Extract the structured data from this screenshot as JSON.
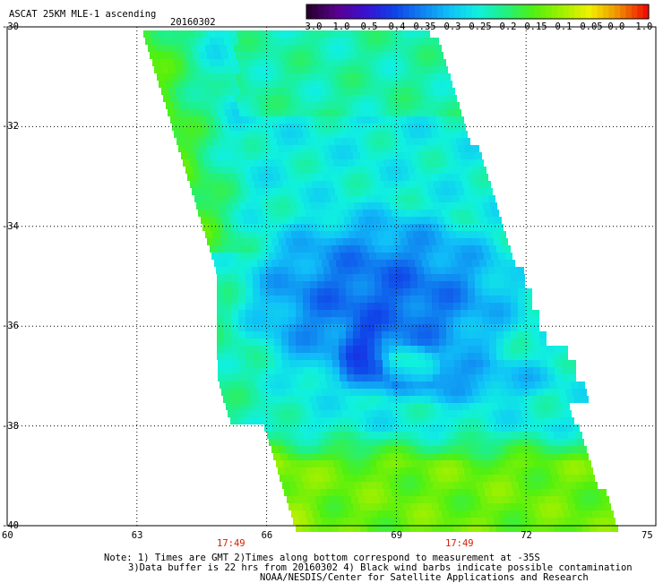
{
  "title": "ASCAT 25KM MLE-1 ascending",
  "date": "20160302",
  "colorbar": {
    "labels": [
      "-3.0",
      "-1.0",
      "-0.5",
      "-0.4",
      "-0.35",
      "-0.3",
      "-0.25",
      "-0.2",
      "-0.15",
      "-0.1",
      "-0.05",
      "0.0",
      "1.0"
    ],
    "colors": [
      "#2a0030",
      "#5a0090",
      "#3a10d0",
      "#1040e8",
      "#1080f0",
      "#10c0f8",
      "#10f0e0",
      "#20f080",
      "#50f010",
      "#a0f000",
      "#f0f000",
      "#f09000",
      "#f01000"
    ]
  },
  "axes": {
    "lat_labels": [
      "-30",
      "-32",
      "-34",
      "-36",
      "-38",
      "-40"
    ],
    "lon_labels": [
      "60",
      "63",
      "66",
      "69",
      "72",
      "75"
    ],
    "lat_values": [
      -30,
      -32,
      -34,
      -36,
      -38,
      -40
    ],
    "lon_values": [
      60,
      63,
      66,
      69,
      72,
      75
    ]
  },
  "times": [
    "17:49",
    "17:49"
  ],
  "notes": {
    "line1": "Note: 1) Times are GMT 2)Times along bottom correspond to measurement at -35S",
    "line2": "3)Data buffer is 22 hrs from 20160302 4) Black wind barbs indicate possible contamination",
    "line3": "NOAA/NESDIS/Center for Satellite Applications and Research"
  }
}
